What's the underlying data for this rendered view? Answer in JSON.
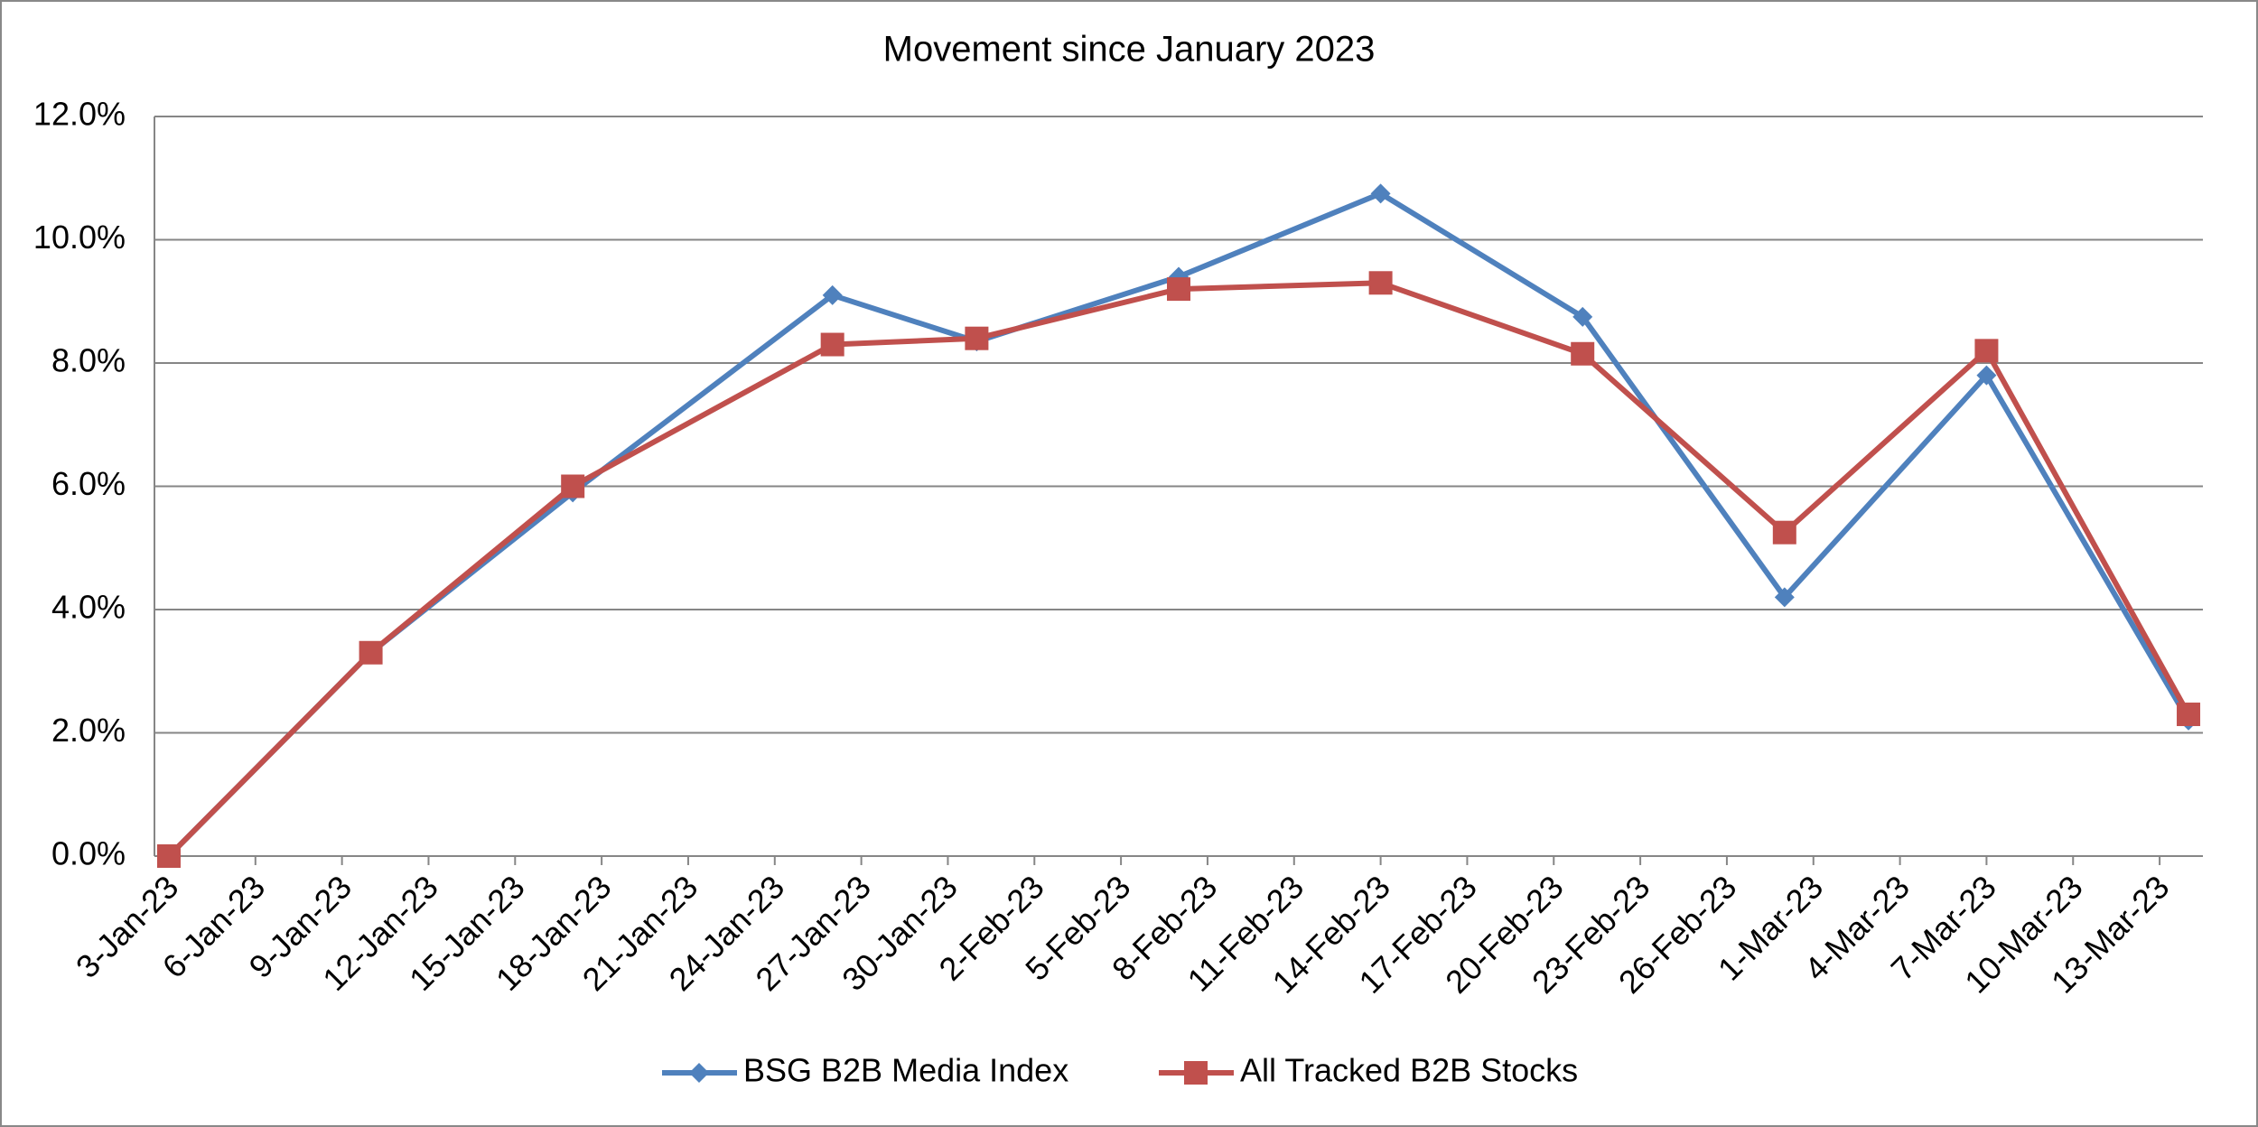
{
  "chart_data": {
    "type": "line",
    "title": "Movement since January 2023",
    "x": [
      "3-Jan-23",
      "10-Jan-23",
      "17-Jan-23",
      "26-Jan-23",
      "31-Jan-23",
      "7-Feb-23",
      "14-Feb-23",
      "21-Feb-23",
      "28-Feb-23",
      "7-Mar-23",
      "14-Mar-23"
    ],
    "xlim": [
      "3-Jan-23",
      "14-Mar-23"
    ],
    "xticks": [
      "3-Jan-23",
      "6-Jan-23",
      "9-Jan-23",
      "12-Jan-23",
      "15-Jan-23",
      "18-Jan-23",
      "21-Jan-23",
      "24-Jan-23",
      "27-Jan-23",
      "30-Jan-23",
      "2-Feb-23",
      "5-Feb-23",
      "8-Feb-23",
      "11-Feb-23",
      "14-Feb-23",
      "17-Feb-23",
      "20-Feb-23",
      "23-Feb-23",
      "26-Feb-23",
      "1-Mar-23",
      "4-Mar-23",
      "7-Mar-23",
      "10-Mar-23",
      "13-Mar-23"
    ],
    "ylim": [
      0,
      12
    ],
    "yticks": [
      {
        "value": 0,
        "label": "0.0%"
      },
      {
        "value": 2,
        "label": "2.0%"
      },
      {
        "value": 4,
        "label": "4.0%"
      },
      {
        "value": 6,
        "label": "6.0%"
      },
      {
        "value": 8,
        "label": "8.0%"
      },
      {
        "value": 10,
        "label": "10.0%"
      },
      {
        "value": 12,
        "label": "12.0%"
      }
    ],
    "grid": true,
    "legend": "bottom",
    "series": [
      {
        "name": "BSG B2B Media Index",
        "color": "#4f81bd",
        "marker": "diamond",
        "values": [
          0,
          3.3,
          5.9,
          9.1,
          8.35,
          9.4,
          10.75,
          8.75,
          4.2,
          7.8,
          2.2
        ]
      },
      {
        "name": "All Tracked B2B Stocks",
        "color": "#c0504d",
        "marker": "square",
        "values": [
          0,
          3.3,
          6.0,
          8.3,
          8.4,
          9.2,
          9.3,
          8.15,
          5.25,
          8.2,
          2.3
        ]
      }
    ]
  }
}
